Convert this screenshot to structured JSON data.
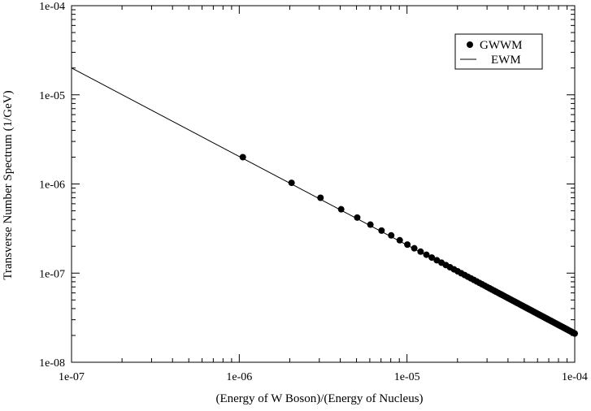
{
  "chart_data": {
    "type": "scatter",
    "title": "",
    "xlabel": "(Energy of W Boson)/(Energy of Nucleus)",
    "ylabel": "Transverse Number Spectrum (1/GeV)",
    "xscale": "log",
    "yscale": "log",
    "xlim": [
      1e-07,
      0.0001
    ],
    "ylim": [
      1e-08,
      0.0001
    ],
    "x_ticks": [
      "1e-07",
      "1e-06",
      "1e-05",
      "1e-04"
    ],
    "y_ticks": [
      "1e-08",
      "1e-07",
      "1e-06",
      "1e-05",
      "1e-04"
    ],
    "grid": false,
    "legend": "top-right",
    "series": [
      {
        "name": "GWWM",
        "style": "markers",
        "color": "#000000",
        "x_start": 1.05e-06,
        "x_step": 1e-06,
        "x_end": 0.0001,
        "y_law": "y = 2.1e-12 / x",
        "x_sample": [
          1.05e-06,
          2.05e-06,
          3.05e-06,
          4.05e-06,
          5.05e-06,
          6.05e-06,
          7.05e-06,
          8.05e-06,
          1e-05,
          5e-05,
          0.0001
        ],
        "y_sample": [
          2e-06,
          1.03e-06,
          7e-07,
          5.2e-07,
          4.2e-07,
          3.5e-07,
          3e-07,
          2.65e-07,
          2.1e-07,
          4.2e-08,
          2.1e-08
        ]
      },
      {
        "name": "EWM",
        "style": "line",
        "color": "#000000",
        "x": [
          1e-07,
          0.0001
        ],
        "y": [
          2e-05,
          2.1e-08
        ]
      }
    ]
  }
}
